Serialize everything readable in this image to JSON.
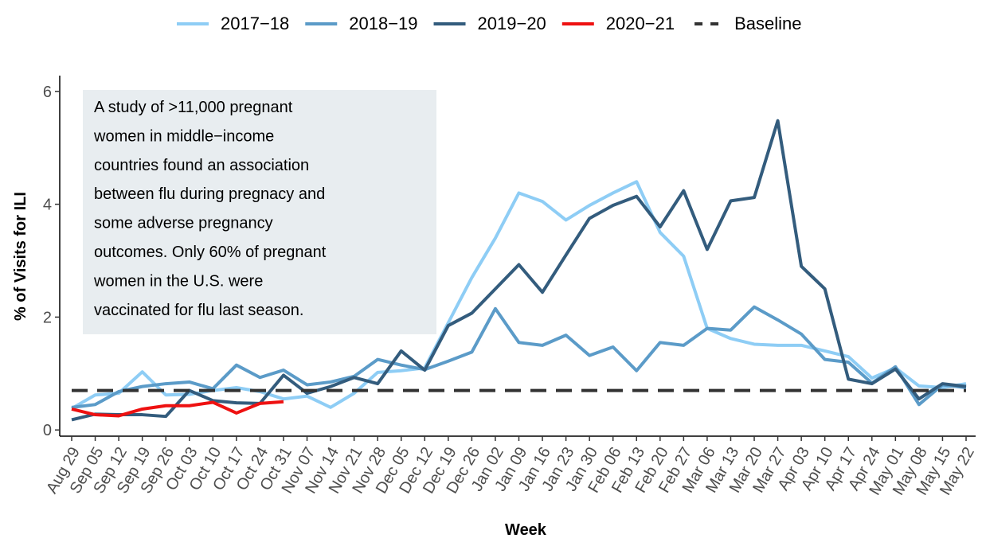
{
  "chart_data": {
    "type": "line",
    "x_label": "Week",
    "y_label": "% of Visits for ILI",
    "categories": [
      "Aug 29",
      "Sep 05",
      "Sep 12",
      "Sep 19",
      "Sep 26",
      "Oct 03",
      "Oct 10",
      "Oct 17",
      "Oct 24",
      "Oct 31",
      "Nov 07",
      "Nov 14",
      "Nov 21",
      "Nov 28",
      "Dec 05",
      "Dec 12",
      "Dec 19",
      "Dec 26",
      "Jan 02",
      "Jan 09",
      "Jan 16",
      "Jan 23",
      "Jan 30",
      "Feb 06",
      "Feb 13",
      "Feb 20",
      "Feb 27",
      "Mar 06",
      "Mar 13",
      "Mar 20",
      "Mar 27",
      "Apr 03",
      "Apr 10",
      "Apr 17",
      "Apr 24",
      "May 01",
      "May 08",
      "May 15",
      "May 22"
    ],
    "series": [
      {
        "name": "2017−18",
        "color": "#8ecdf5",
        "values": [
          0.38,
          0.62,
          0.65,
          1.03,
          0.62,
          0.63,
          0.7,
          0.75,
          0.68,
          0.55,
          0.6,
          0.4,
          0.65,
          1.02,
          1.05,
          1.1,
          1.9,
          2.7,
          3.4,
          4.2,
          4.05,
          3.72,
          3.98,
          4.2,
          4.4,
          3.5,
          3.08,
          1.8,
          1.62,
          1.52,
          1.5,
          1.5,
          1.4,
          1.3,
          0.92,
          1.1,
          0.78,
          0.75,
          0.82
        ]
      },
      {
        "name": "2018−19",
        "color": "#5b9bc8",
        "values": [
          0.4,
          0.45,
          0.68,
          0.77,
          0.82,
          0.85,
          0.73,
          1.15,
          0.93,
          1.06,
          0.8,
          0.85,
          0.95,
          1.25,
          1.15,
          1.07,
          1.22,
          1.38,
          2.15,
          1.55,
          1.5,
          1.68,
          1.32,
          1.47,
          1.05,
          1.55,
          1.5,
          1.8,
          1.77,
          2.18,
          1.95,
          1.7,
          1.25,
          1.2,
          0.83,
          1.12,
          0.45,
          0.8,
          0.75
        ]
      },
      {
        "name": "2019−20",
        "color": "#335c7d",
        "values": [
          0.18,
          0.28,
          0.27,
          0.27,
          0.24,
          0.7,
          0.52,
          0.48,
          0.47,
          0.97,
          0.65,
          0.77,
          0.93,
          0.82,
          1.4,
          1.06,
          1.85,
          2.07,
          2.5,
          2.93,
          2.44,
          3.1,
          3.75,
          3.98,
          4.14,
          3.6,
          4.24,
          3.2,
          4.06,
          4.12,
          5.48,
          2.9,
          2.5,
          0.9,
          0.82,
          1.08,
          0.55,
          0.82,
          0.77
        ]
      },
      {
        "name": "2020−21",
        "color": "#ee1111",
        "values": [
          0.37,
          0.27,
          0.25,
          0.37,
          0.43,
          0.43,
          0.49,
          0.3,
          0.47,
          0.5,
          null,
          null,
          null,
          null,
          null,
          null,
          null,
          null,
          null,
          null,
          null,
          null,
          null,
          null,
          null,
          null,
          null,
          null,
          null,
          null,
          null,
          null,
          null,
          null,
          null,
          null,
          null,
          null,
          null
        ]
      }
    ],
    "baseline": {
      "name": "Baseline",
      "value": 0.7,
      "color": "#333333"
    },
    "annotation": [
      "A study of >11,000 pregnant",
      "women in middle−income",
      "countries found an association",
      "between flu during pregnacy and",
      "some adverse pregnancy",
      "outcomes. Only 60% of pregnant",
      "women in the U.S. were",
      "vaccinated for flu last season."
    ],
    "annotation_fill": "#e8edf0",
    "ylim": [
      -0.11,
      6.28
    ],
    "yticks": [
      0,
      2,
      4,
      6
    ],
    "legend": "top"
  }
}
